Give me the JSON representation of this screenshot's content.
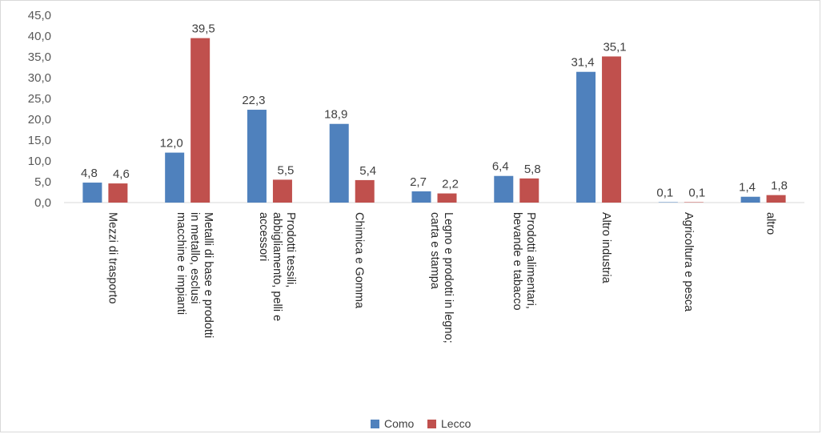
{
  "chart_data": {
    "type": "bar",
    "title": "",
    "xlabel": "",
    "ylabel": "",
    "ylim": [
      0,
      45
    ],
    "yticks": [
      "0,0",
      "5,0",
      "10,0",
      "15,0",
      "20,0",
      "25,0",
      "30,0",
      "35,0",
      "40,0",
      "45,0"
    ],
    "grid": false,
    "legend_position": "bottom",
    "categories": [
      [
        "Mezzi di trasporto"
      ],
      [
        "Metalli di base e prodotti",
        "in metallo, esclusi",
        "macchine e impianti"
      ],
      [
        "Prodotti tessili,",
        "abbigliamento, pelli e",
        "accessori"
      ],
      [
        "Chimica e Gomma"
      ],
      [
        "Legno e prodotti in legno;",
        "carta e stampa"
      ],
      [
        "Prodotti alimentari,",
        "bevande e tabacco"
      ],
      [
        "Altro industria"
      ],
      [
        "Agricoltura e pesca"
      ],
      [
        "altro"
      ]
    ],
    "series": [
      {
        "name": "Como",
        "color": "#4f81bd",
        "values": [
          4.8,
          12.0,
          22.3,
          18.9,
          2.7,
          6.4,
          31.4,
          0.1,
          1.4
        ],
        "labels": [
          "4,8",
          "12,0",
          "22,3",
          "18,9",
          "2,7",
          "6,4",
          "31,4",
          "0,1",
          "1,4"
        ]
      },
      {
        "name": "Lecco",
        "color": "#c0504d",
        "values": [
          4.6,
          39.5,
          5.5,
          5.4,
          2.2,
          5.8,
          35.1,
          0.1,
          1.8
        ],
        "labels": [
          "4,6",
          "39,5",
          "5,5",
          "5,4",
          "2,2",
          "5,8",
          "35,1",
          "0,1",
          "1,8"
        ]
      }
    ]
  }
}
